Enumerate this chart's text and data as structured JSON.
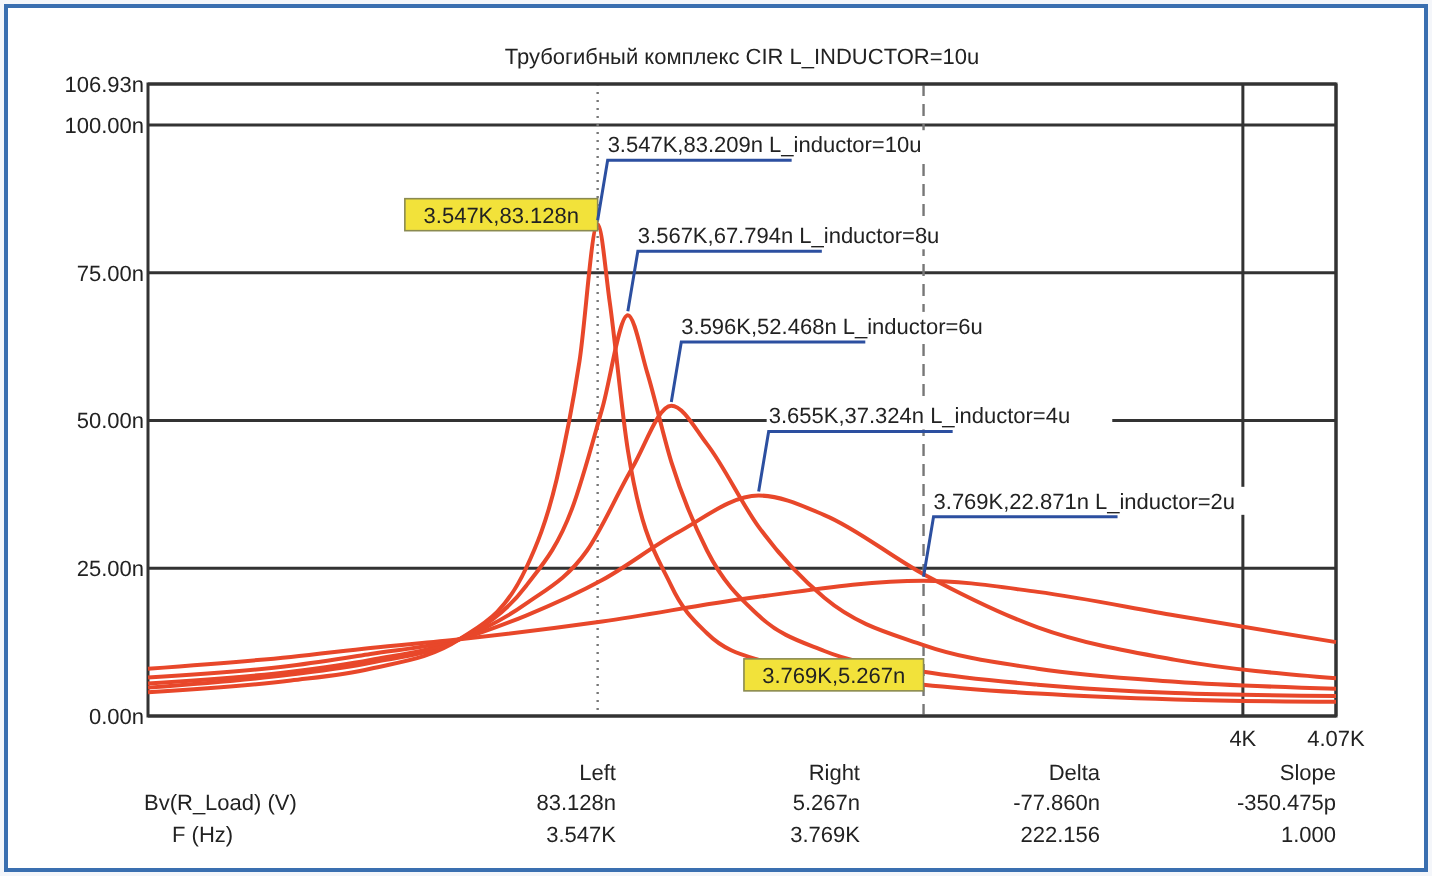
{
  "chart_data": {
    "type": "line",
    "title": "Трубогибный комплекс CIR L_INDUCTOR=10u",
    "log": "x",
    "grid": true,
    "xlim": [
      3262,
      4070
    ],
    "xticks": [
      {
        "value": 4000,
        "label": "4K"
      },
      {
        "value": 4070,
        "label": "4.07K"
      }
    ],
    "ylim": [
      0,
      106.93
    ],
    "yticks": [
      {
        "value": 0,
        "label": "0.00n"
      },
      {
        "value": 25,
        "label": "25.00n"
      },
      {
        "value": 50,
        "label": "50.00n"
      },
      {
        "value": 75,
        "label": "75.00n"
      },
      {
        "value": 100,
        "label": "100.00n"
      },
      {
        "value": 106.93,
        "label": "106.93n"
      }
    ],
    "series": [
      {
        "color": "#e8472a",
        "x": [
          3262,
          3350,
          3400,
          3457,
          3500,
          3520,
          3535,
          3547,
          3555,
          3567,
          3596,
          3620,
          3655,
          3769,
          3850,
          3950,
          4070
        ],
        "values": [
          4,
          6,
          8,
          13,
          25,
          40,
          60,
          83.2,
          70,
          45,
          22,
          14,
          9.5,
          5.3,
          3.8,
          2.8,
          2.4
        ]
      },
      {
        "color": "#e8472a",
        "x": [
          3262,
          3350,
          3400,
          3457,
          3500,
          3530,
          3550,
          3567,
          3580,
          3596,
          3620,
          3655,
          3700,
          3769,
          3850,
          3950,
          4070
        ],
        "values": [
          4.8,
          7,
          9,
          13,
          22,
          35,
          52,
          67.8,
          58,
          43,
          28,
          17,
          11,
          7.5,
          5.3,
          3.9,
          3.4
        ]
      },
      {
        "color": "#e8472a",
        "x": [
          3262,
          3350,
          3400,
          3457,
          3500,
          3540,
          3570,
          3596,
          3620,
          3655,
          3700,
          3769,
          3850,
          3950,
          4070
        ],
        "values": [
          5.5,
          7.5,
          9.5,
          13,
          19,
          28,
          42,
          52.5,
          46,
          32,
          20,
          12,
          8,
          5.8,
          4.6
        ]
      },
      {
        "color": "#e8472a",
        "x": [
          3262,
          3350,
          3400,
          3457,
          3500,
          3550,
          3600,
          3655,
          3700,
          3769,
          3850,
          3950,
          4070
        ],
        "values": [
          6.5,
          8.5,
          10.5,
          13,
          17,
          23,
          31,
          37.3,
          34,
          24,
          15,
          9.5,
          6.4
        ]
      },
      {
        "color": "#e8472a",
        "x": [
          3262,
          3350,
          3400,
          3457,
          3550,
          3650,
          3769,
          3850,
          3950,
          4070
        ],
        "values": [
          8,
          10,
          11.5,
          13,
          16,
          20,
          22.9,
          21,
          17,
          12.5
        ]
      }
    ],
    "ref_lines": [
      {
        "axis": "x",
        "value": 3547,
        "color": "#777777",
        "line_style": "dotted"
      },
      {
        "axis": "x",
        "value": 3769,
        "color": "#777777",
        "line_style": "dashed"
      }
    ],
    "annotations": [
      {
        "text": "3.547K,83.128n",
        "x": 3547,
        "y": 83.128
      },
      {
        "text": "3.769K,5.267n",
        "x": 3769,
        "y": 5.267
      },
      {
        "text": "3.547K,83.209n L_inductor=10u",
        "x": 3547,
        "y": 83.209
      },
      {
        "text": "3.567K,67.794n L_inductor=8u",
        "x": 3567,
        "y": 67.794
      },
      {
        "text": "3.596K,52.468n L_inductor=6u",
        "x": 3596,
        "y": 52.468
      },
      {
        "text": "3.655K,37.324n L_inductor=4u",
        "x": 3655,
        "y": 37.324
      },
      {
        "text": "3.769K,22.871n L_inductor=2u",
        "x": 3769,
        "y": 22.871
      },
      "Left",
      "Right",
      "Delta",
      "Slope",
      "Bv(R_Load) (V)",
      "83.128n",
      "5.267n",
      "-77.860n",
      "-350.475p",
      "F (Hz)",
      "3.547K",
      "3.769K",
      "222.156",
      "1.000"
    ]
  }
}
